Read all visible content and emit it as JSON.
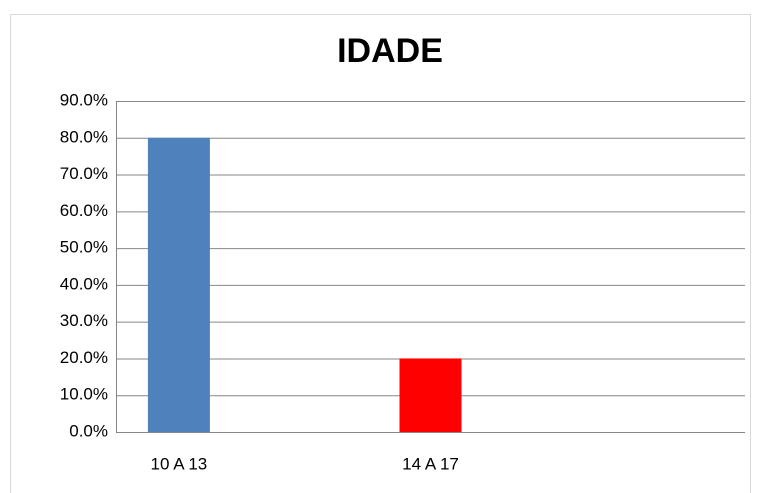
{
  "chart_data": {
    "type": "bar",
    "title": "IDADE",
    "categories": [
      "10 A 13",
      "14 A 17"
    ],
    "values": [
      80,
      20
    ],
    "colors": [
      "#4f81bd",
      "#ff0000"
    ],
    "ylim": [
      0,
      90
    ],
    "yticks": [
      {
        "value": 0,
        "label": "0.0%"
      },
      {
        "value": 10,
        "label": "10.0%"
      },
      {
        "value": 20,
        "label": "20.0%"
      },
      {
        "value": 30,
        "label": "30.0%"
      },
      {
        "value": 40,
        "label": "40.0%"
      },
      {
        "value": 50,
        "label": "50.0%"
      },
      {
        "value": 60,
        "label": "60.0%"
      },
      {
        "value": 70,
        "label": "70.0%"
      },
      {
        "value": 80,
        "label": "80.0%"
      },
      {
        "value": 90,
        "label": "90.0%"
      }
    ],
    "grid": true
  }
}
